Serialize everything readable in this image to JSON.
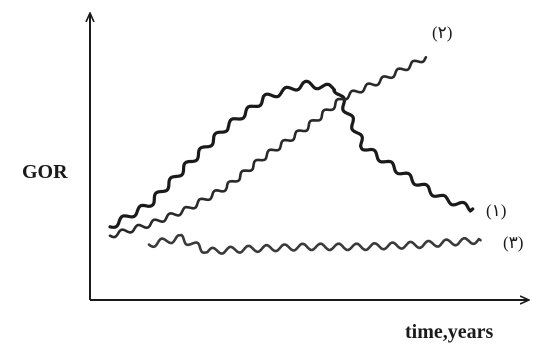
{
  "chart_data": {
    "type": "line",
    "title": "",
    "xlabel": "time,years",
    "ylabel": "GOR",
    "xlim": [
      0,
      10
    ],
    "ylim": [
      0,
      10
    ],
    "grid": false,
    "legend": "none",
    "series": [
      {
        "name": "(۱)",
        "x": [
          0,
          1,
          2,
          3,
          4,
          5,
          5.8,
          6.5,
          7.5,
          8.5,
          9.3
        ],
        "y": [
          1.4,
          2.4,
          4.2,
          5.9,
          7.2,
          7.8,
          7.6,
          5.0,
          3.8,
          2.7,
          2.2
        ]
      },
      {
        "name": "(۲)",
        "x": [
          0,
          1,
          2,
          3,
          4,
          5,
          6,
          7,
          8.1
        ],
        "y": [
          1.0,
          1.5,
          2.2,
          3.2,
          4.6,
          5.8,
          7.2,
          8.0,
          9.0
        ]
      },
      {
        "name": "(۳)",
        "x": [
          1,
          1.8,
          2.5,
          3.5,
          5,
          6.5,
          8,
          9.5
        ],
        "y": [
          0.6,
          0.9,
          0.3,
          0.4,
          0.5,
          0.5,
          0.6,
          0.8
        ]
      }
    ],
    "colors": {
      "axis": "#1a1a1a",
      "series_1": "#1a1a1a",
      "series_2": "#2a2a2a",
      "series_3": "#3a3a3a"
    }
  }
}
